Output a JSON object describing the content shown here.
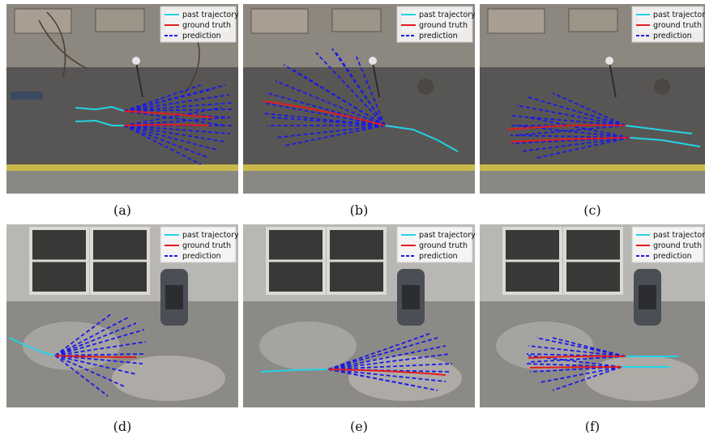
{
  "legend": {
    "past": "past trajectory",
    "gt": "ground truth",
    "pred": "prediction"
  },
  "colors": {
    "past": "#22d3e6",
    "gt": "#e11d1d",
    "pred": "#1a1ae6"
  },
  "captions": [
    "(a)",
    "(b)",
    "(c)",
    "(d)",
    "(e)",
    "(f)"
  ]
}
